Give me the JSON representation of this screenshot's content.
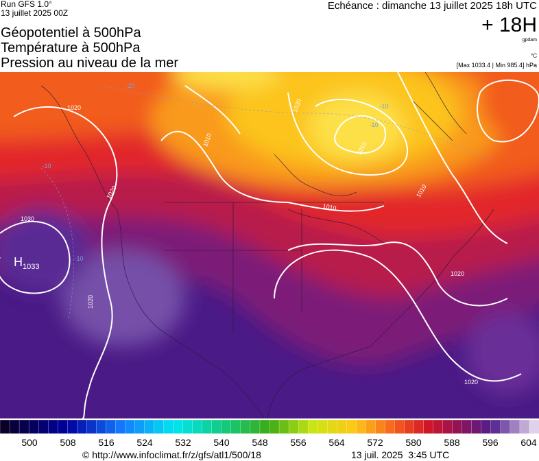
{
  "header": {
    "run": "Run GFS 1.0°",
    "run_date": "13 juillet 2025 00Z",
    "echeance": "Echéance : dimanche 13 juillet 2025 18h UTC",
    "titles": [
      "Géopotentiel à 500hPa",
      "Température à 500hPa",
      "Pression au niveau de la mer"
    ],
    "lead": "+ 18H",
    "unit_geo": "gpdam",
    "unit_temp": "°C",
    "range": "[Max 1033.4 | Min 985.4] hPa"
  },
  "map": {
    "isobar_labels": [
      "1020",
      "1010",
      "1030",
      "1020",
      "1030",
      "1010",
      "1010",
      "1020",
      "1020",
      "1020",
      "1010"
    ],
    "high": {
      "letter": "H",
      "value": "1033"
    },
    "temp_labels": [
      "-20",
      "-10",
      "-10",
      "-10",
      "-10"
    ]
  },
  "colorbar": {
    "labels": [
      "500",
      "508",
      "516",
      "524",
      "532",
      "540",
      "548",
      "556",
      "564",
      "572",
      "580",
      "588",
      "596",
      "604"
    ]
  },
  "footer": {
    "url": "© http://www.infoclimat.fr/z/gfs/atl1/500/18",
    "timestamp": "13 juil. 2025  3:45 UTC"
  }
}
